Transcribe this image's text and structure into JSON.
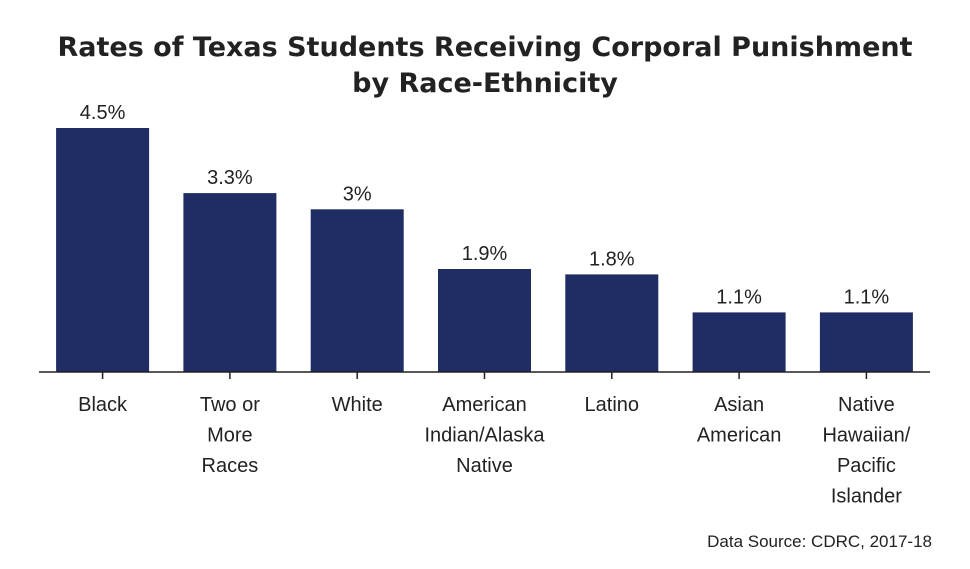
{
  "chart_data": {
    "type": "bar",
    "title": "Rates of Texas Students Receiving Corporal Punishment\nby Race-Ethnicity",
    "categories": [
      [
        "Black"
      ],
      [
        "Two or",
        "More",
        "Races"
      ],
      [
        "White"
      ],
      [
        "American",
        "Indian/Alaska",
        "Native"
      ],
      [
        "Latino"
      ],
      [
        "Asian",
        "American"
      ],
      [
        "Native",
        "Hawaiian/",
        "Pacific",
        "Islander"
      ]
    ],
    "values": [
      4.5,
      3.3,
      3.0,
      1.9,
      1.8,
      1.1,
      1.1
    ],
    "value_labels": [
      "4.5%",
      "3.3%",
      "3%",
      "1.9%",
      "1.8%",
      "1.1%",
      "1.1%"
    ],
    "ylim": [
      0,
      4.5
    ],
    "bar_color": "#1f2d64",
    "grid": false,
    "source": "Data Source: CDRC, 2017-18"
  }
}
